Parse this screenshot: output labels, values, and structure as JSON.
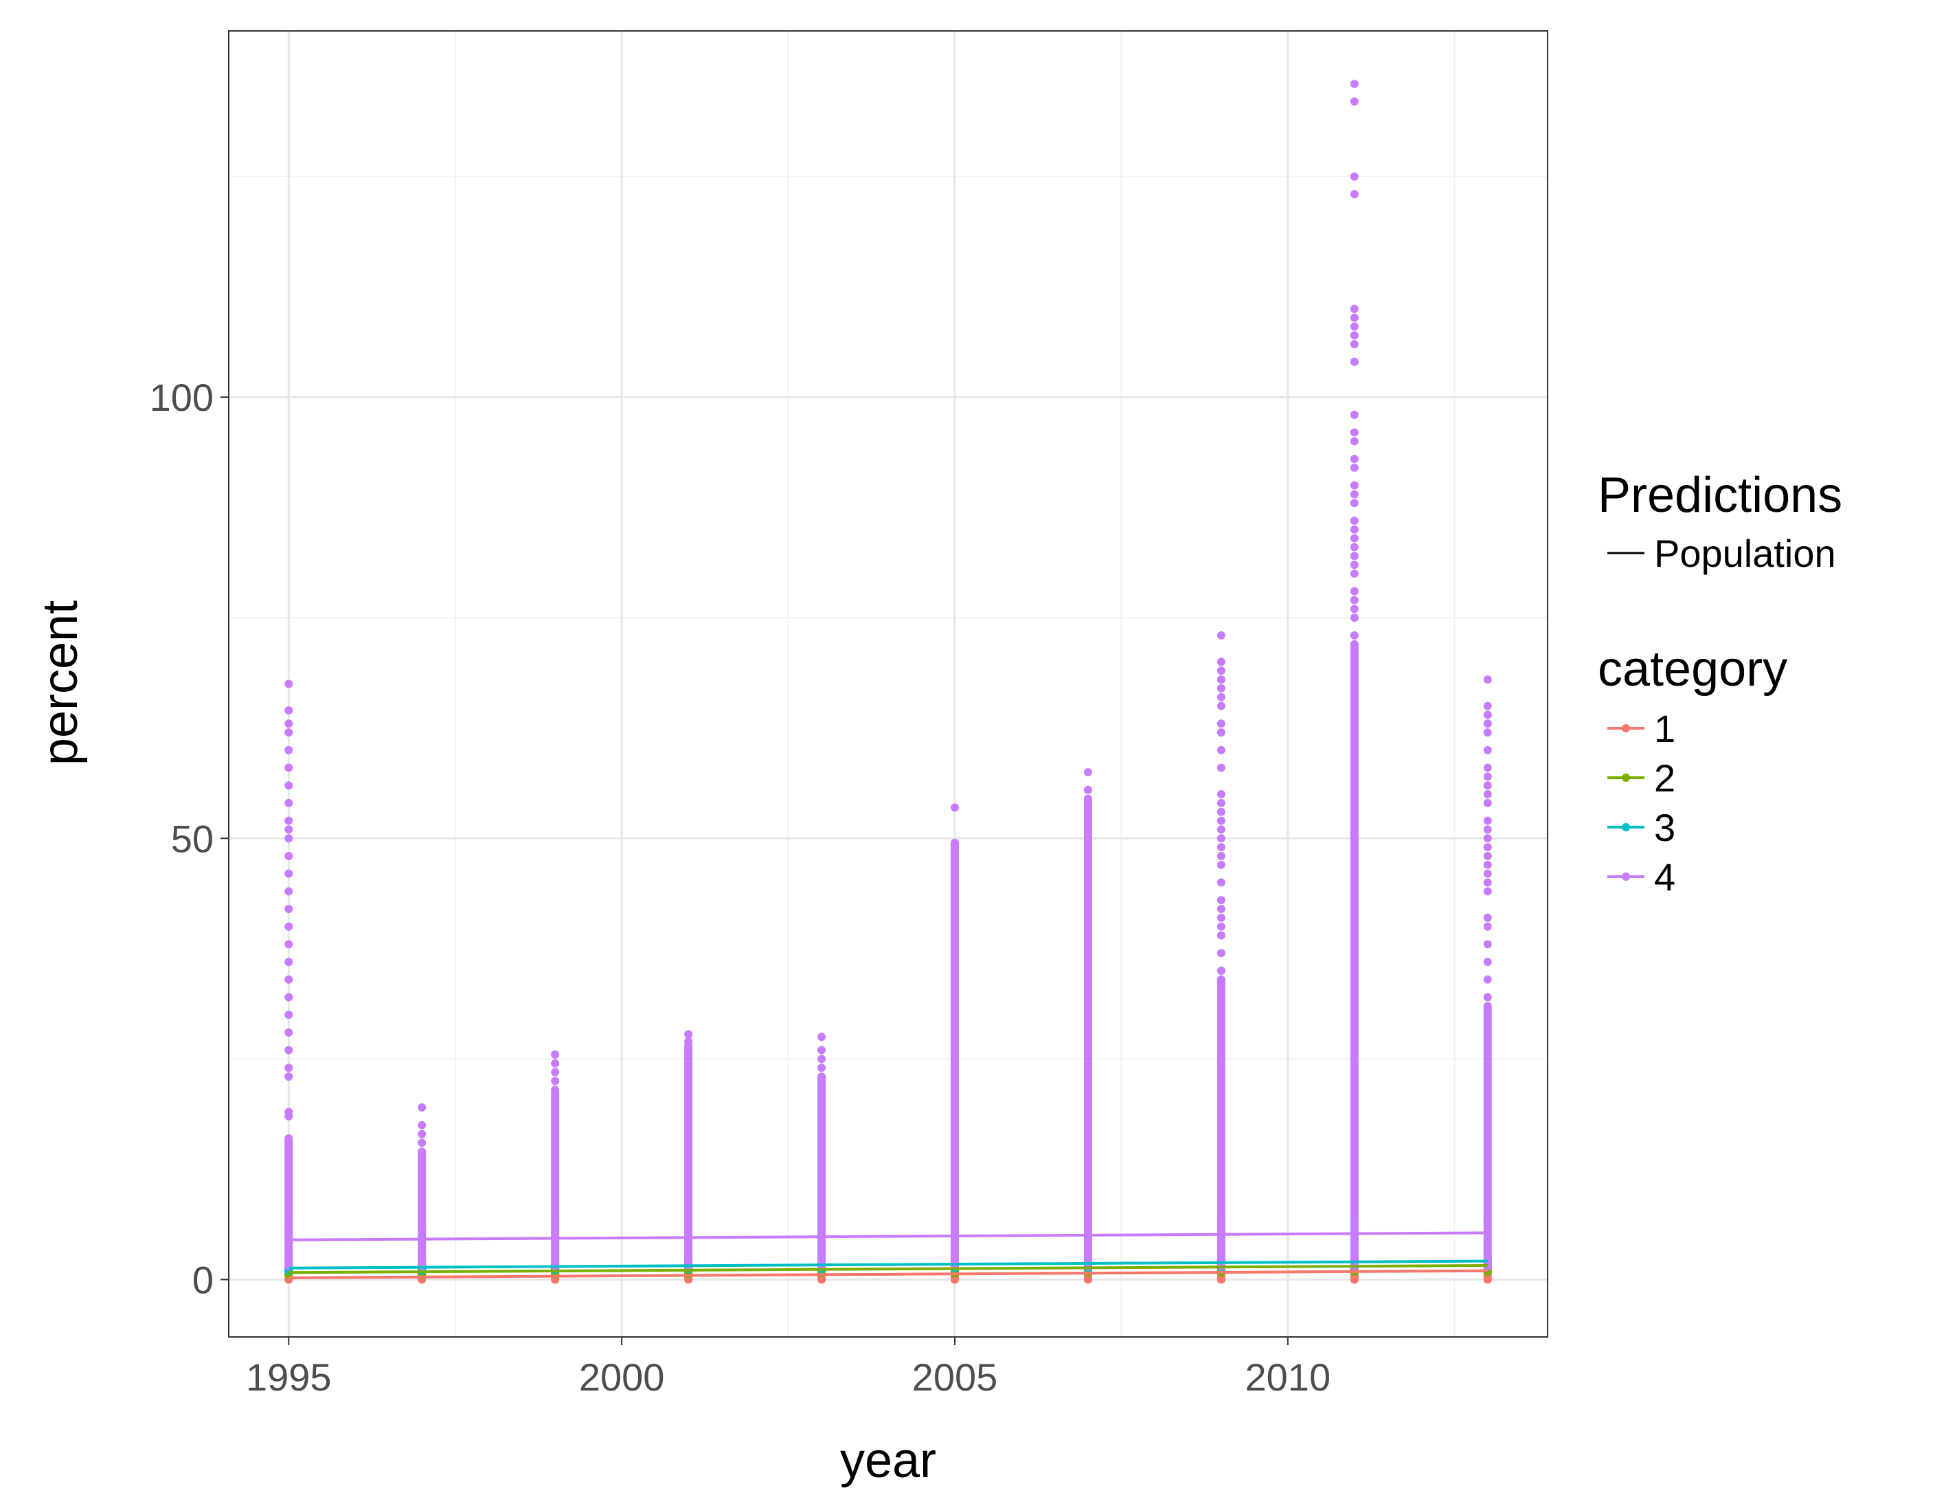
{
  "chart_data": {
    "type": "scatter",
    "xlabel": "year",
    "ylabel": "percent",
    "xlim": [
      1994.1,
      2013.9
    ],
    "ylim": [
      -6.5,
      141.5
    ],
    "x_ticks": [
      1995,
      2000,
      2005,
      2010
    ],
    "x_tick_labels": [
      "1995",
      "2000",
      "2005",
      "2010"
    ],
    "y_ticks": [
      0,
      50,
      100
    ],
    "y_tick_labels": [
      "0",
      "50",
      "100"
    ],
    "grid": true,
    "legend_position": "right",
    "legend": {
      "predictions_title": "Predictions",
      "predictions_entry": "Population",
      "category_title": "category",
      "category_labels": [
        "1",
        "2",
        "3",
        "4"
      ]
    },
    "series": [
      {
        "name": "1",
        "color": "#F8766D",
        "line": [
          [
            1995,
            0.2
          ],
          [
            2013,
            1.0
          ]
        ],
        "points": [
          {
            "x": 1995,
            "min": 0,
            "max": 0.6
          },
          {
            "x": 1997,
            "min": 0,
            "max": 0.6
          },
          {
            "x": 1999,
            "min": 0,
            "max": 0.7
          },
          {
            "x": 2001,
            "min": 0,
            "max": 0.7
          },
          {
            "x": 2003,
            "min": 0,
            "max": 0.7
          },
          {
            "x": 2005,
            "min": 0,
            "max": 0.8
          },
          {
            "x": 2007,
            "min": 0,
            "max": 0.8
          },
          {
            "x": 2009,
            "min": 0,
            "max": 0.9
          },
          {
            "x": 2011,
            "min": 0,
            "max": 0.9
          },
          {
            "x": 2013,
            "min": 0,
            "max": 1.0
          }
        ]
      },
      {
        "name": "2",
        "color": "#7CAE00",
        "line": [
          [
            1995,
            0.8
          ],
          [
            2013,
            1.6
          ]
        ],
        "points": [
          {
            "x": 1995,
            "min": 0.5,
            "max": 1.2
          },
          {
            "x": 1997,
            "min": 0.5,
            "max": 1.2
          },
          {
            "x": 1999,
            "min": 0.6,
            "max": 1.3
          },
          {
            "x": 2001,
            "min": 0.6,
            "max": 1.3
          },
          {
            "x": 2003,
            "min": 0.7,
            "max": 1.4
          },
          {
            "x": 2005,
            "min": 0.7,
            "max": 1.4
          },
          {
            "x": 2007,
            "min": 0.8,
            "max": 1.5
          },
          {
            "x": 2009,
            "min": 0.8,
            "max": 1.5
          },
          {
            "x": 2011,
            "min": 0.9,
            "max": 1.6
          },
          {
            "x": 2013,
            "min": 0.9,
            "max": 1.7
          }
        ]
      },
      {
        "name": "3",
        "color": "#00BFC4",
        "line": [
          [
            1995,
            1.3
          ],
          [
            2013,
            2.1
          ]
        ],
        "points": [
          {
            "x": 1995,
            "min": 1.0,
            "max": 1.6
          },
          {
            "x": 1997,
            "min": 1.0,
            "max": 1.7
          },
          {
            "x": 1999,
            "min": 1.1,
            "max": 1.8
          },
          {
            "x": 2001,
            "min": 1.2,
            "max": 2.2
          },
          {
            "x": 2003,
            "min": 1.2,
            "max": 1.9
          },
          {
            "x": 2005,
            "min": 1.3,
            "max": 2.0
          },
          {
            "x": 2007,
            "min": 1.3,
            "max": 2.0
          },
          {
            "x": 2009,
            "min": 1.4,
            "max": 2.1
          },
          {
            "x": 2011,
            "min": 1.5,
            "max": 2.2
          },
          {
            "x": 2013,
            "min": 1.5,
            "max": 2.3
          }
        ]
      },
      {
        "name": "4",
        "color": "#C77CFF",
        "line": [
          [
            1995,
            4.5
          ],
          [
            2013,
            5.3
          ]
        ],
        "points": [
          {
            "x": 1995,
            "min": 1.5,
            "max": 67.5,
            "dense_max": 16,
            "extra": [
              18.5,
              19,
              23,
              24,
              26,
              28,
              30,
              32,
              34,
              36,
              38,
              40,
              42,
              44,
              46,
              48,
              50,
              51,
              52,
              54,
              56,
              58,
              60,
              62,
              63,
              64.5
            ]
          },
          {
            "x": 1997,
            "min": 1.5,
            "max": 19.5,
            "dense_max": 14.5,
            "extra": [
              15.5,
              16.5,
              17.5
            ]
          },
          {
            "x": 1999,
            "min": 1.5,
            "max": 25.5,
            "dense_max": 21.5,
            "extra": [
              22.5,
              23.5,
              24.5
            ]
          },
          {
            "x": 2001,
            "min": 1.5,
            "max": 27.8,
            "dense_max": 26.5,
            "extra": [
              27
            ]
          },
          {
            "x": 2003,
            "min": 1.5,
            "max": 27.5,
            "dense_max": 23,
            "extra": [
              24,
              25,
              26
            ]
          },
          {
            "x": 2005,
            "min": 1.5,
            "max": 53.5,
            "dense_max": 49.5
          },
          {
            "x": 2007,
            "min": 1.5,
            "max": 57.5,
            "dense_max": 54.5,
            "extra": [
              55.5
            ]
          },
          {
            "x": 2009,
            "min": 1.5,
            "max": 73,
            "dense_max": 34,
            "extra": [
              35,
              37,
              39,
              40,
              41,
              42,
              43,
              45,
              47,
              48,
              49,
              50,
              51,
              52,
              53,
              54,
              55,
              58,
              60,
              62,
              63,
              65,
              66,
              67,
              68,
              69,
              70
            ]
          },
          {
            "x": 2011,
            "min": 1.5,
            "max": 135.5,
            "dense_max": 72,
            "extra": [
              73,
              75,
              76,
              77,
              78,
              80,
              81,
              82,
              83,
              84,
              85,
              86,
              88,
              89,
              90,
              92,
              93,
              95,
              96,
              98,
              104,
              106,
              107,
              108,
              109,
              110,
              123,
              125,
              133.5
            ]
          },
          {
            "x": 2013,
            "min": 1.5,
            "max": 68,
            "dense_max": 31,
            "extra": [
              32,
              34,
              36,
              38,
              40,
              41,
              44,
              45,
              46,
              47,
              48,
              49,
              50,
              51,
              52,
              54,
              55,
              56,
              57,
              58,
              60,
              62,
              63,
              64,
              65
            ]
          }
        ]
      }
    ]
  }
}
